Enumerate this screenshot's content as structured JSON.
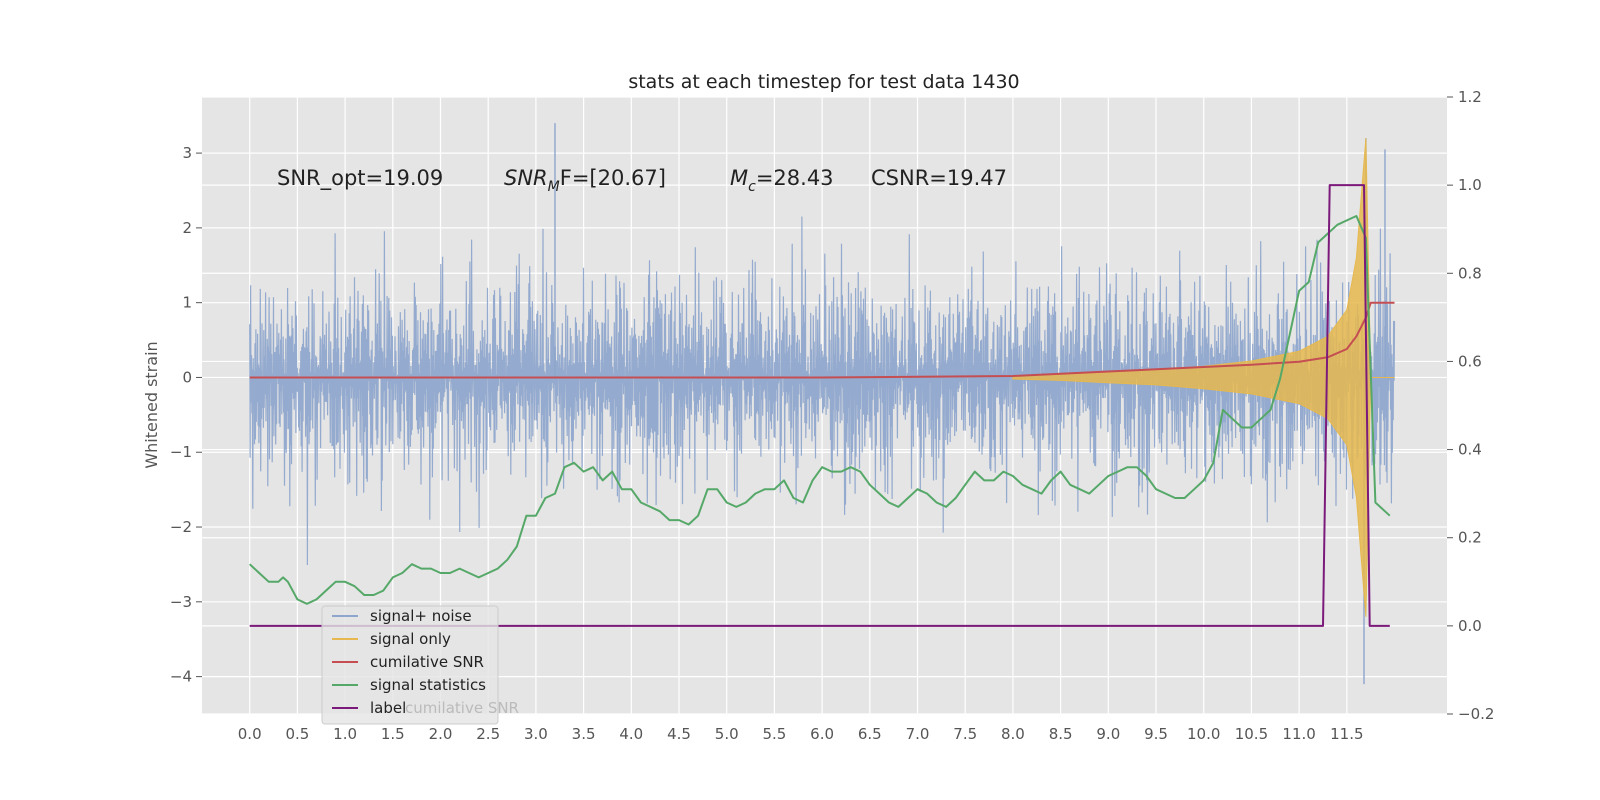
{
  "chart_data": {
    "type": "line",
    "title": "stats at each timestep for test data 1430",
    "ylabel": "Whitened strain",
    "y2label": "",
    "xlim": [
      -0.5,
      12.55
    ],
    "ylim": [
      -4.5,
      3.75
    ],
    "y2lim": [
      -0.2,
      1.2
    ],
    "x_ticks": [
      "0.0",
      "0.5",
      "1.0",
      "1.5",
      "2.0",
      "2.5",
      "3.0",
      "3.5",
      "4.0",
      "4.5",
      "5.0",
      "5.5",
      "6.0",
      "6.5",
      "7.0",
      "7.5",
      "8.0",
      "8.5",
      "9.0",
      "9.5",
      "10.0",
      "10.5",
      "11.0",
      "11.5"
    ],
    "y_ticks": [
      -4,
      -3,
      -2,
      -1,
      0,
      1,
      2,
      3
    ],
    "y_tick_labels": [
      "−4",
      "−3",
      "−2",
      "−1",
      "0",
      "1",
      "2",
      "3"
    ],
    "y2_ticks": [
      -0.2,
      0.0,
      0.2,
      0.4,
      0.6,
      0.8,
      1.0,
      1.2
    ],
    "y2_tick_labels": [
      "−0.2",
      "0.0",
      "0.2",
      "0.4",
      "0.6",
      "0.8",
      "1.0",
      "1.2"
    ],
    "grid": true,
    "legend_position": "lower-left",
    "annotations": {
      "snr_opt": "SNR_opt=19.09",
      "snr_mf_main": "SNR",
      "snr_mf_sub": "M",
      "snr_mf_rest": "F=[20.67]",
      "mc_main": "M",
      "mc_sub": "c",
      "mc_rest": "=28.43",
      "csnr": "CSNR=19.47"
    },
    "series": [
      {
        "name": "signal+ noise",
        "color": "#8fa6cc",
        "axis": "left",
        "x_range": [
          0.0,
          12.0
        ],
        "envelope_upper_typical": 1.6,
        "envelope_lower_typical": -1.6,
        "max": 3.4,
        "min": -4.1
      },
      {
        "name": "signal only",
        "color": "#e6b84f",
        "axis": "left",
        "x": [
          8.0,
          8.5,
          9.0,
          9.5,
          10.0,
          10.5,
          11.0,
          11.3,
          11.5,
          11.6,
          11.65,
          11.7,
          11.75,
          12.0
        ],
        "amplitude": [
          0.02,
          0.04,
          0.07,
          0.1,
          0.15,
          0.22,
          0.35,
          0.55,
          0.9,
          1.6,
          2.4,
          3.2,
          0.0,
          0.0
        ]
      },
      {
        "name": "cumilative SNR",
        "color": "#c44e52",
        "axis": "left",
        "x": [
          0.0,
          6.0,
          8.0,
          9.0,
          10.0,
          10.5,
          11.0,
          11.3,
          11.5,
          11.6,
          11.7,
          11.75,
          12.0
        ],
        "y": [
          0.0,
          0.0,
          0.02,
          0.08,
          0.14,
          0.17,
          0.21,
          0.27,
          0.38,
          0.55,
          0.8,
          1.0,
          1.0
        ]
      },
      {
        "name": "signal statistics",
        "color": "#55a868",
        "axis": "right",
        "x": [
          0.0,
          0.1,
          0.2,
          0.3,
          0.35,
          0.4,
          0.5,
          0.6,
          0.7,
          0.8,
          0.9,
          1.0,
          1.1,
          1.2,
          1.3,
          1.4,
          1.5,
          1.6,
          1.7,
          1.8,
          1.9,
          2.0,
          2.1,
          2.2,
          2.3,
          2.4,
          2.5,
          2.6,
          2.7,
          2.8,
          2.9,
          3.0,
          3.1,
          3.2,
          3.3,
          3.4,
          3.5,
          3.6,
          3.7,
          3.8,
          3.9,
          4.0,
          4.1,
          4.2,
          4.3,
          4.4,
          4.5,
          4.6,
          4.7,
          4.8,
          4.9,
          5.0,
          5.1,
          5.2,
          5.3,
          5.4,
          5.5,
          5.6,
          5.7,
          5.8,
          5.9,
          6.0,
          6.1,
          6.2,
          6.3,
          6.4,
          6.5,
          6.6,
          6.7,
          6.8,
          6.9,
          7.0,
          7.1,
          7.2,
          7.3,
          7.4,
          7.5,
          7.6,
          7.7,
          7.8,
          7.9,
          8.0,
          8.1,
          8.2,
          8.3,
          8.4,
          8.5,
          8.6,
          8.7,
          8.8,
          8.9,
          9.0,
          9.1,
          9.2,
          9.3,
          9.4,
          9.5,
          9.6,
          9.7,
          9.8,
          9.9,
          10.0,
          10.1,
          10.2,
          10.3,
          10.4,
          10.5,
          10.6,
          10.7,
          10.8,
          10.9,
          11.0,
          11.1,
          11.2,
          11.3,
          11.4,
          11.5,
          11.6,
          11.7,
          11.8,
          11.9,
          11.95
        ],
        "y": [
          0.14,
          0.12,
          0.1,
          0.1,
          0.11,
          0.1,
          0.06,
          0.05,
          0.06,
          0.08,
          0.1,
          0.1,
          0.09,
          0.07,
          0.07,
          0.08,
          0.11,
          0.12,
          0.14,
          0.13,
          0.13,
          0.12,
          0.12,
          0.13,
          0.12,
          0.11,
          0.12,
          0.13,
          0.15,
          0.18,
          0.25,
          0.25,
          0.29,
          0.3,
          0.36,
          0.37,
          0.35,
          0.36,
          0.33,
          0.35,
          0.31,
          0.31,
          0.28,
          0.27,
          0.26,
          0.24,
          0.24,
          0.23,
          0.25,
          0.31,
          0.31,
          0.28,
          0.27,
          0.28,
          0.3,
          0.31,
          0.31,
          0.33,
          0.29,
          0.28,
          0.33,
          0.36,
          0.35,
          0.35,
          0.36,
          0.35,
          0.32,
          0.3,
          0.28,
          0.27,
          0.29,
          0.31,
          0.3,
          0.28,
          0.27,
          0.29,
          0.32,
          0.35,
          0.33,
          0.33,
          0.35,
          0.34,
          0.32,
          0.31,
          0.3,
          0.33,
          0.35,
          0.32,
          0.31,
          0.3,
          0.32,
          0.34,
          0.35,
          0.36,
          0.36,
          0.34,
          0.31,
          0.3,
          0.29,
          0.29,
          0.31,
          0.33,
          0.37,
          0.49,
          0.47,
          0.45,
          0.45,
          0.47,
          0.49,
          0.56,
          0.66,
          0.76,
          0.78,
          0.87,
          0.89,
          0.91,
          0.92,
          0.93,
          0.88,
          0.28,
          0.26,
          0.25
        ],
        "note_x_end": 11.95
      },
      {
        "name": "label",
        "color": "#7b1a7b",
        "axis": "right",
        "x": [
          0.0,
          11.25,
          11.32,
          11.68,
          11.74,
          11.95
        ],
        "y": [
          0.0,
          0.0,
          1.0,
          1.0,
          0.0,
          0.0
        ]
      }
    ],
    "legend_ghost_text": "cumilative SNR"
  }
}
